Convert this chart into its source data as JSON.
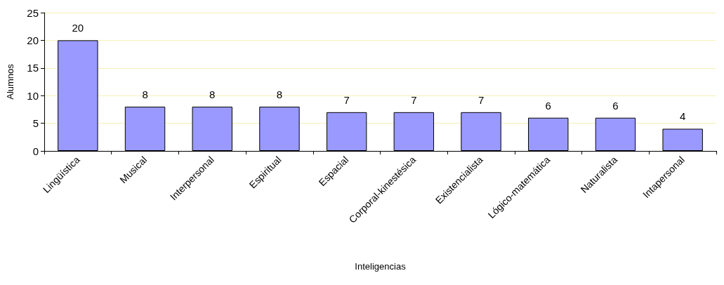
{
  "chart_data": {
    "type": "bar",
    "xlabel": "Inteligencias",
    "ylabel": "Alumnos",
    "categories": [
      "Lingüística",
      "Musical",
      "Interpersonal",
      "Espiritual",
      "Espacial",
      "Corporal-kinestésica",
      "Existencialista",
      "Lógico-matemática",
      "Naturalista",
      "Intapersonal"
    ],
    "values": [
      20,
      8,
      8,
      8,
      7,
      7,
      7,
      6,
      6,
      4
    ],
    "color": "#9999ff",
    "ylim": [
      0,
      25
    ],
    "yticks": [
      0,
      5,
      10,
      15,
      20,
      25
    ],
    "grid": "y",
    "data_labels": true
  }
}
